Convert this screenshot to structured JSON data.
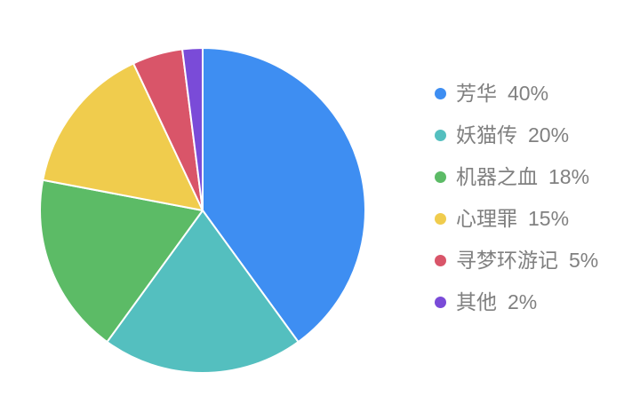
{
  "chart_data": {
    "type": "pie",
    "title": "",
    "unit": "%",
    "start_angle": "top",
    "direction": "clockwise",
    "legend_position": "right",
    "background_color": "#FFFFFF",
    "slice_border": {
      "color": "#FFFFFF",
      "width": 2
    },
    "legend_text_color": "#808080",
    "slices": [
      {
        "name": "芳华",
        "value": 40,
        "color": "#3E8EF2"
      },
      {
        "name": "妖猫传",
        "value": 20,
        "color": "#54BFBF"
      },
      {
        "name": "机器之血",
        "value": 18,
        "color": "#5CBB66"
      },
      {
        "name": "心理罪",
        "value": 15,
        "color": "#F0CC4D"
      },
      {
        "name": "寻梦环游记",
        "value": 5,
        "color": "#D95569"
      },
      {
        "name": "其他",
        "value": 2,
        "color": "#7A4BD8"
      }
    ]
  }
}
